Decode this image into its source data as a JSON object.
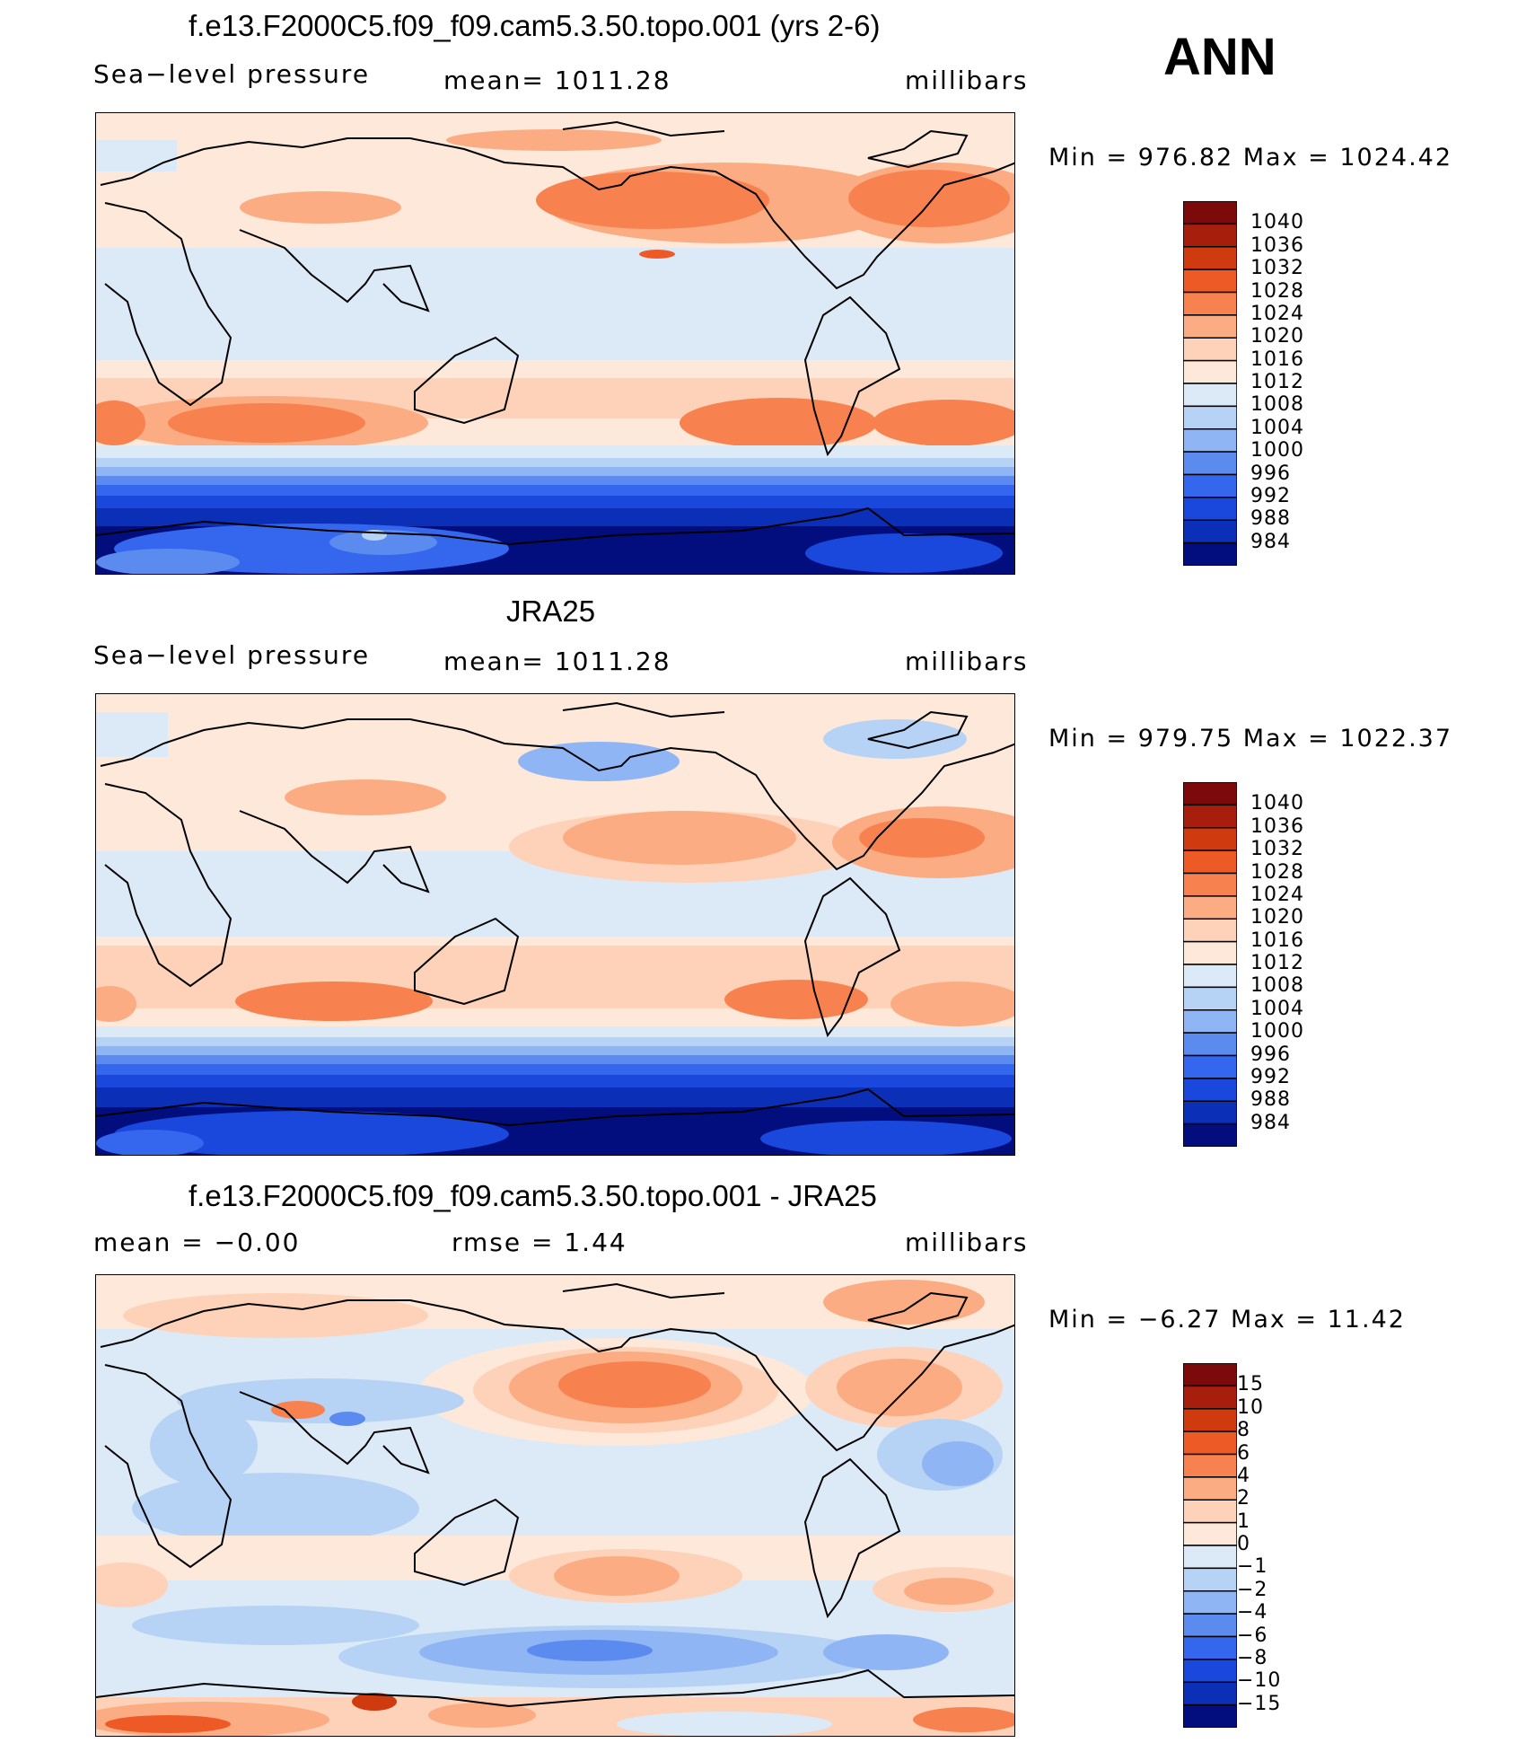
{
  "season": "ANN",
  "panels": [
    {
      "title": "f.e13.F2000C5.f09_f09.cam5.3.50.topo.001 (yrs 2-6)",
      "left_label": "Sea−level pressure",
      "center_label": "mean=  1011.28",
      "units": "millibars",
      "minmax": "Min  =  976.82  Max  =  1024.42",
      "colorbar_labels": [
        "1040",
        "1036",
        "1032",
        "1028",
        "1024",
        "1020",
        "1016",
        "1012",
        "1008",
        "1004",
        "1000",
        "996",
        "992",
        "988",
        "984"
      ]
    },
    {
      "title": "JRA25",
      "left_label": "Sea−level pressure",
      "center_label": "mean=  1011.28",
      "units": "millibars",
      "minmax": "Min  =  979.75  Max  =  1022.37",
      "colorbar_labels": [
        "1040",
        "1036",
        "1032",
        "1028",
        "1024",
        "1020",
        "1016",
        "1012",
        "1008",
        "1004",
        "1000",
        "996",
        "992",
        "988",
        "984"
      ]
    },
    {
      "title": "f.e13.F2000C5.f09_f09.cam5.3.50.topo.001 - JRA25",
      "left_label": "mean  =    −0.00",
      "center_label": "rmse  =     1.44",
      "units": "millibars",
      "minmax": "Min  =   −6.27  Max  =    11.42",
      "colorbar_labels": [
        "15",
        "10",
        "8",
        "6",
        "4",
        "2",
        "1",
        "0",
        "−1",
        "−2",
        "−4",
        "−6",
        "−8",
        "−10",
        "−15"
      ]
    }
  ],
  "colors": {
    "warm": [
      "#7d0a0a",
      "#a81e0d",
      "#d03a0f",
      "#ee5a25",
      "#f7824f",
      "#fcac83",
      "#fdd2b8",
      "#fde8d9"
    ],
    "cool": [
      "#dceaf7",
      "#b6d3f5",
      "#8fb5f4",
      "#5c8bf0",
      "#3466ee",
      "#1a48dd",
      "#0c2fb7",
      "#020d7e"
    ]
  }
}
